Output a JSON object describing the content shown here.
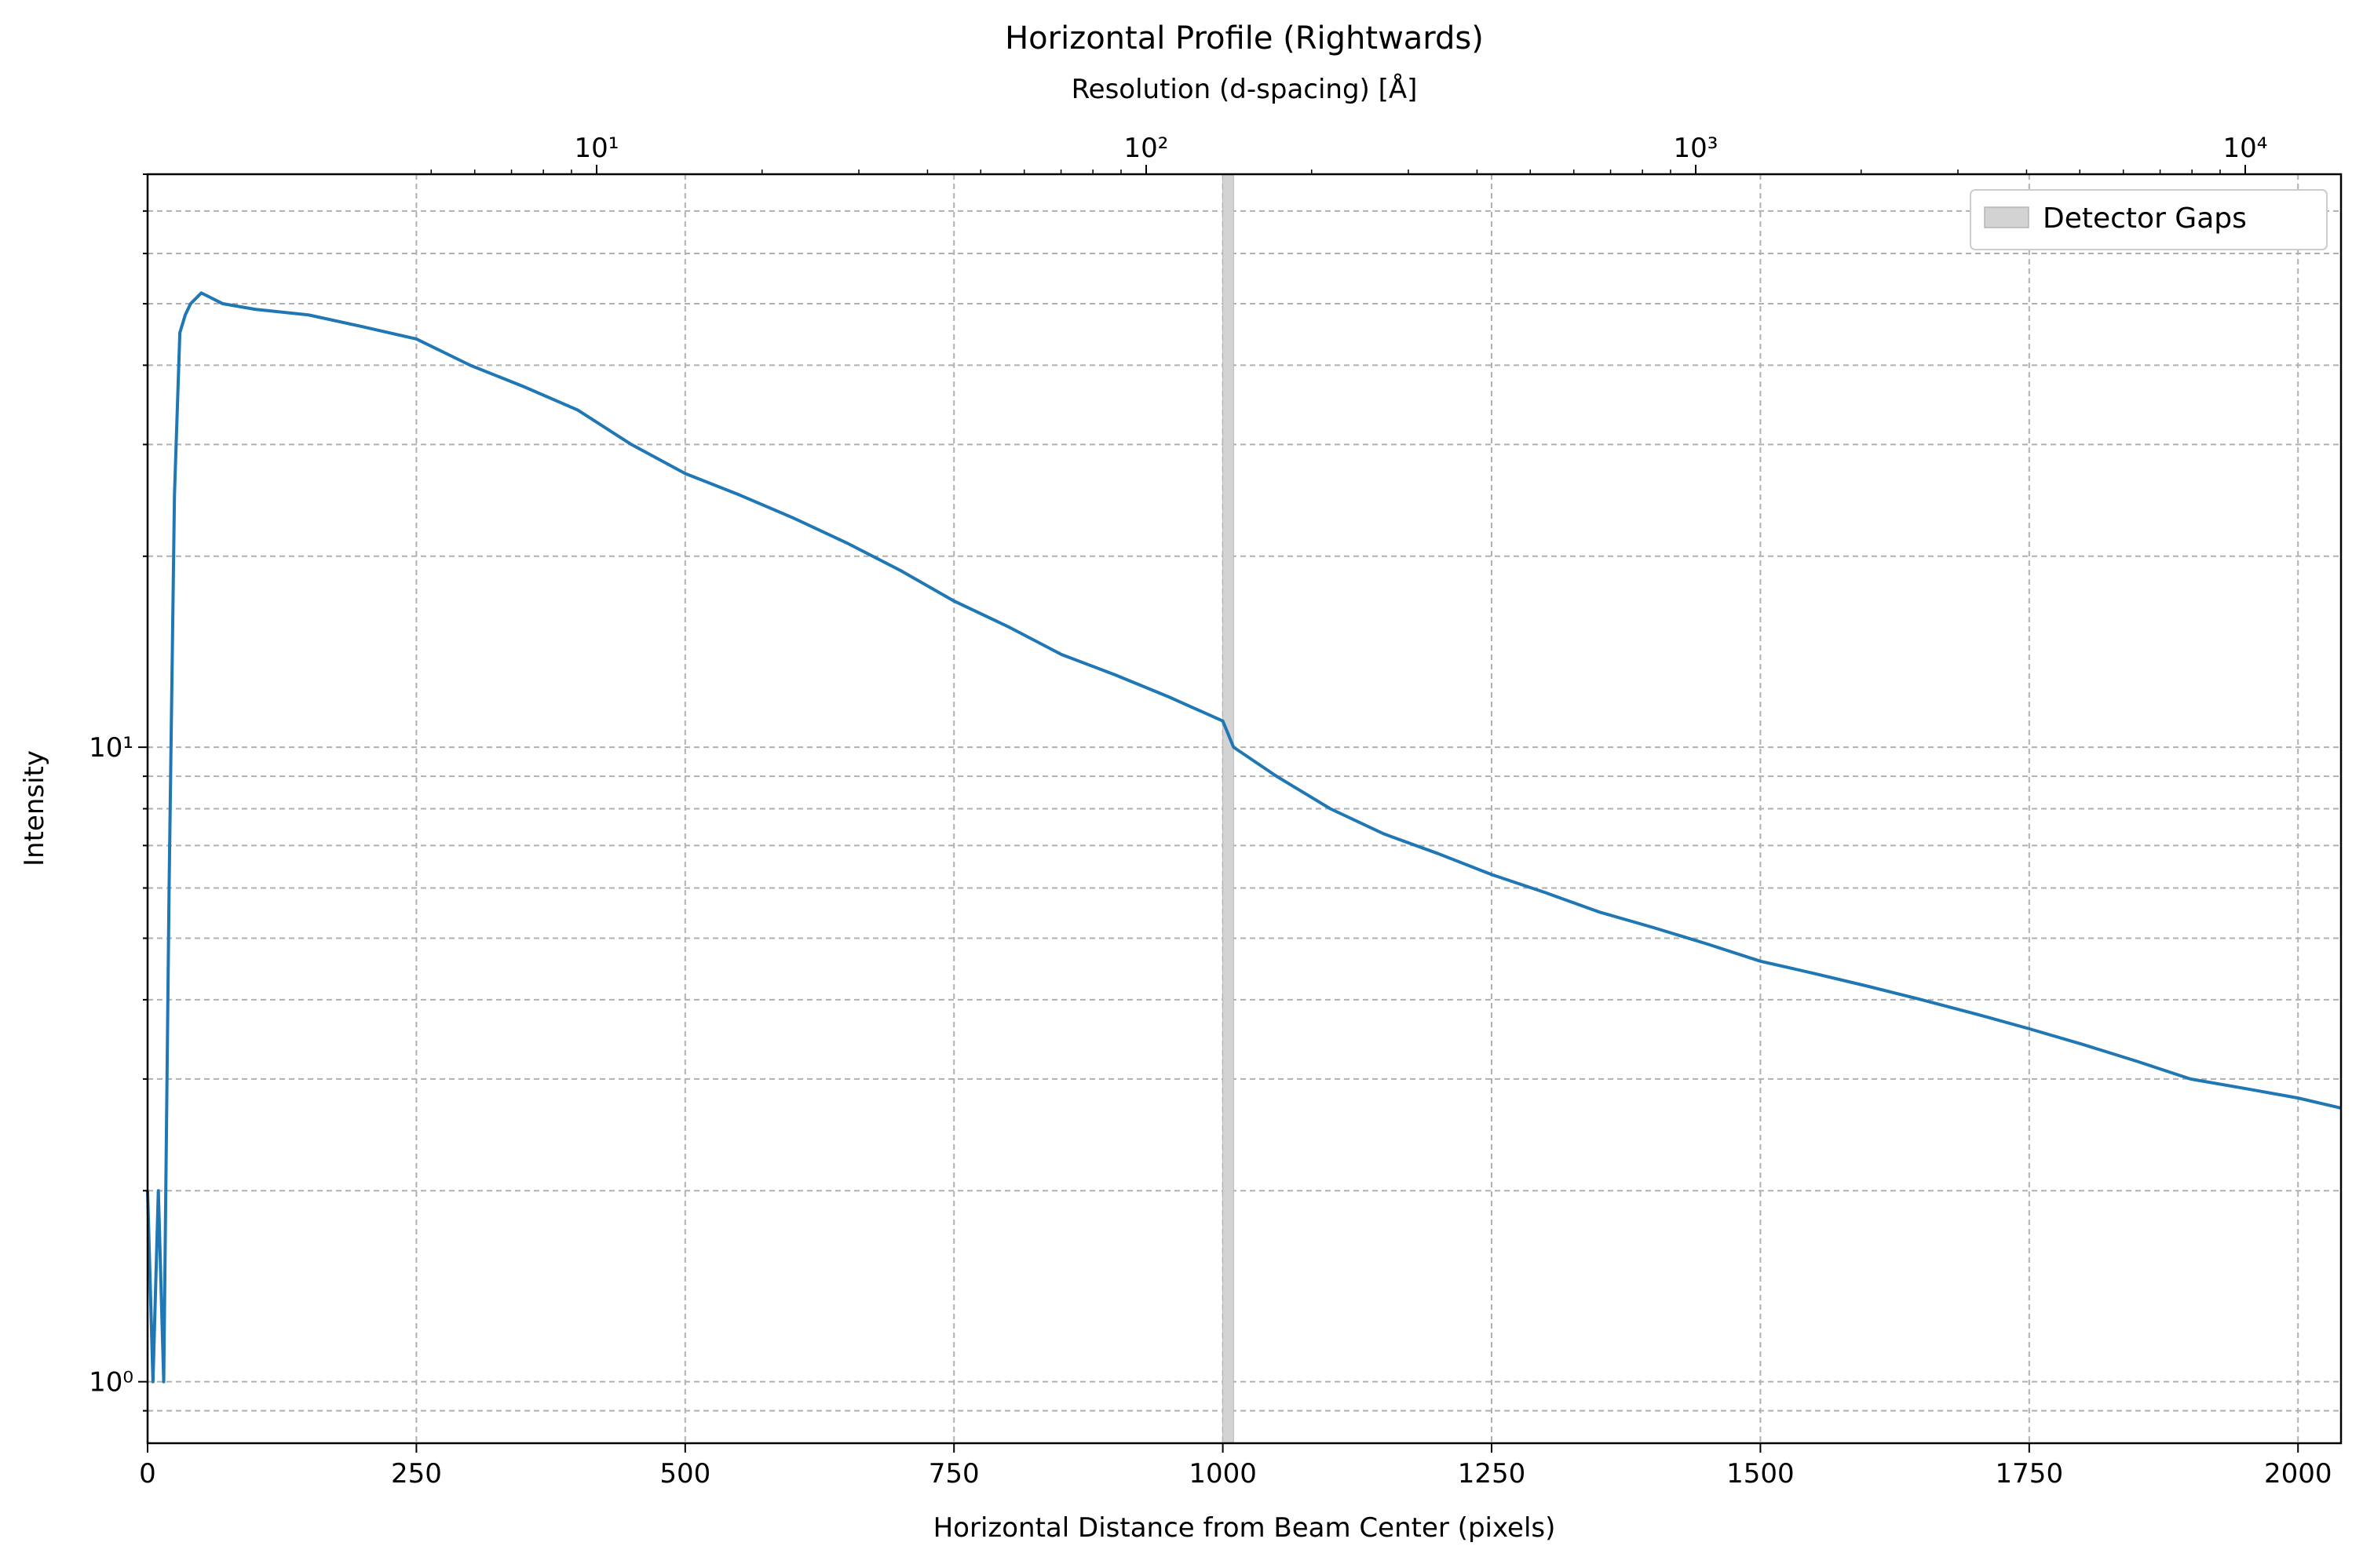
{
  "chart_data": {
    "type": "line",
    "title": "Horizontal Profile (Rightwards)",
    "xlabel": "Horizontal Distance from Beam Center (pixels)",
    "ylabel": "Intensity",
    "top_xlabel": "Resolution (d-spacing) [Å]",
    "xlim": [
      0,
      2040
    ],
    "ylim": [
      0.8,
      80
    ],
    "yscale": "log",
    "grid": true,
    "legend_placement": "top-right",
    "x_ticks": [
      0,
      250,
      500,
      750,
      1000,
      1250,
      1500,
      1750,
      2000
    ],
    "x_tick_labels": [
      "0",
      "250",
      "500",
      "750",
      "1000",
      "1250",
      "1500",
      "1750",
      "2000"
    ],
    "y_ticks": [
      1,
      10
    ],
    "y_tick_labels": [
      "10⁰",
      "10¹"
    ],
    "top_ticks": [
      10,
      100,
      1000,
      10000
    ],
    "top_tick_labels": [
      "10¹",
      "10²",
      "10³",
      "10⁴"
    ],
    "series": [
      {
        "name": "",
        "color": "#1f77b4",
        "x": [
          0,
          5,
          10,
          15,
          20,
          25,
          30,
          35,
          40,
          50,
          70,
          100,
          150,
          200,
          250,
          300,
          350,
          400,
          450,
          500,
          550,
          600,
          650,
          700,
          750,
          800,
          850,
          900,
          950,
          1000,
          1010,
          1050,
          1100,
          1150,
          1200,
          1250,
          1300,
          1350,
          1400,
          1450,
          1500,
          1550,
          1600,
          1650,
          1700,
          1750,
          1800,
          1850,
          1900,
          1950,
          2000,
          2040
        ],
        "y": [
          2,
          1,
          2,
          1,
          6,
          25,
          45,
          48,
          50,
          52,
          50,
          49,
          48,
          46,
          44,
          40,
          37,
          34,
          30,
          27,
          25,
          23,
          21,
          19,
          17,
          15.5,
          14,
          13,
          12,
          11,
          10,
          9,
          8,
          7.3,
          6.8,
          6.3,
          5.9,
          5.5,
          5.2,
          4.9,
          4.6,
          4.4,
          4.2,
          4.0,
          3.8,
          3.6,
          3.4,
          3.2,
          3.0,
          2.9,
          2.8,
          2.7
        ]
      }
    ],
    "gap_band": {
      "name": "Detector Gaps",
      "x_range": [
        1000,
        1010
      ],
      "color": "#d3d3d3"
    }
  }
}
